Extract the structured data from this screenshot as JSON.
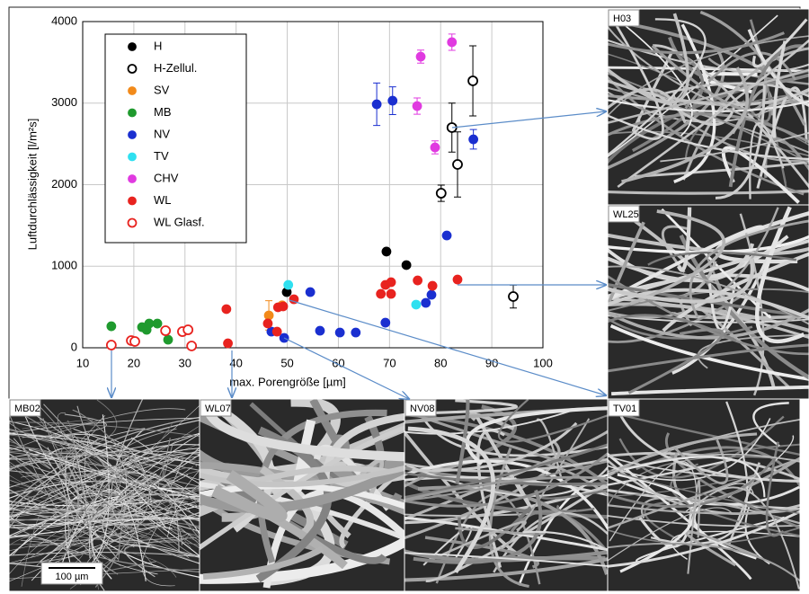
{
  "chart_data": {
    "type": "scatter",
    "xlabel": "max. Porengröße [µm]",
    "ylabel": "Luftdurchlässigkeit [l/m²s]",
    "xlim": [
      10,
      100
    ],
    "xticks": [
      10,
      20,
      30,
      40,
      50,
      60,
      70,
      80,
      90,
      100
    ],
    "ylim": [
      0,
      4000
    ],
    "yticks": [
      0,
      1000,
      2000,
      3000,
      4000
    ],
    "grid": true,
    "legend": "upper left",
    "series": [
      {
        "name": "H",
        "color": "#000000",
        "marker": "filled",
        "x": [
          49.9,
          69.4,
          73.3
        ],
        "values": [
          683,
          1180,
          1014
        ]
      },
      {
        "name": "H-Zellul.",
        "color": "#000000",
        "marker": "open",
        "x": [
          80.1,
          82.2,
          83.3,
          86.3,
          94.2
        ],
        "values": [
          1895,
          2700,
          2248,
          3273,
          628
        ],
        "errors": [
          100,
          300,
          400,
          430,
          140
        ]
      },
      {
        "name": "SV",
        "color": "#f28a1a",
        "marker": "filled",
        "x": [
          46.4,
          49.0
        ],
        "values": [
          397,
          520
        ],
        "errors": [
          180,
          null
        ]
      },
      {
        "name": "MB",
        "color": "#1f9a2e",
        "marker": "filled",
        "x": [
          15.6,
          21.6,
          22.5,
          23.0,
          24.6,
          26.7
        ],
        "values": [
          264,
          253,
          220,
          297,
          297,
          99
        ]
      },
      {
        "name": "NV",
        "color": "#1a2fd0",
        "marker": "filled",
        "x": [
          67.5,
          70.6,
          86.4,
          81.2,
          54.5,
          56.4,
          60.3,
          63.4,
          46.9,
          49.4,
          69.2,
          77.1,
          78.2
        ],
        "values": [
          2986,
          3030,
          2556,
          1377,
          683,
          209,
          187,
          187,
          198,
          121,
          308,
          551,
          650
        ],
        "errors": [
          260,
          170,
          120,
          null,
          null,
          null,
          null,
          null,
          null,
          null,
          null,
          null,
          null
        ]
      },
      {
        "name": "TV",
        "color": "#2fe0f0",
        "marker": "filled",
        "x": [
          50.2,
          75.2
        ],
        "values": [
          771,
          529
        ]
      },
      {
        "name": "CHV",
        "color": "#e03ae0",
        "marker": "filled",
        "x": [
          76.1,
          82.2,
          75.4,
          78.9
        ],
        "values": [
          3570,
          3747,
          2964,
          2457
        ],
        "errors": [
          80,
          100,
          100,
          80
        ]
      },
      {
        "name": "WL",
        "color": "#e8231f",
        "marker": "filled",
        "x": [
          38.1,
          38.4,
          46.2,
          48.2,
          49.2,
          51.3,
          48.0,
          69.2,
          70.3,
          68.3,
          70.3,
          75.5,
          78.4,
          83.3
        ],
        "values": [
          474,
          55,
          298,
          496,
          507,
          595,
          198,
          771,
          804,
          661,
          661,
          826,
          760,
          837
        ]
      },
      {
        "name": "WL Glasf.",
        "color": "#e8231f",
        "marker": "open",
        "x": [
          15.6,
          19.5,
          20.2,
          26.2,
          29.5,
          30.6,
          31.3
        ],
        "values": [
          33,
          88,
          77,
          209,
          198,
          220,
          22
        ]
      }
    ]
  },
  "images": [
    {
      "label": "H03"
    },
    {
      "label": "WL25"
    },
    {
      "label": "TV01"
    },
    {
      "label": "MB02"
    },
    {
      "label": "WL07"
    },
    {
      "label": "NV08"
    }
  ],
  "scale_bar": "100 µm"
}
